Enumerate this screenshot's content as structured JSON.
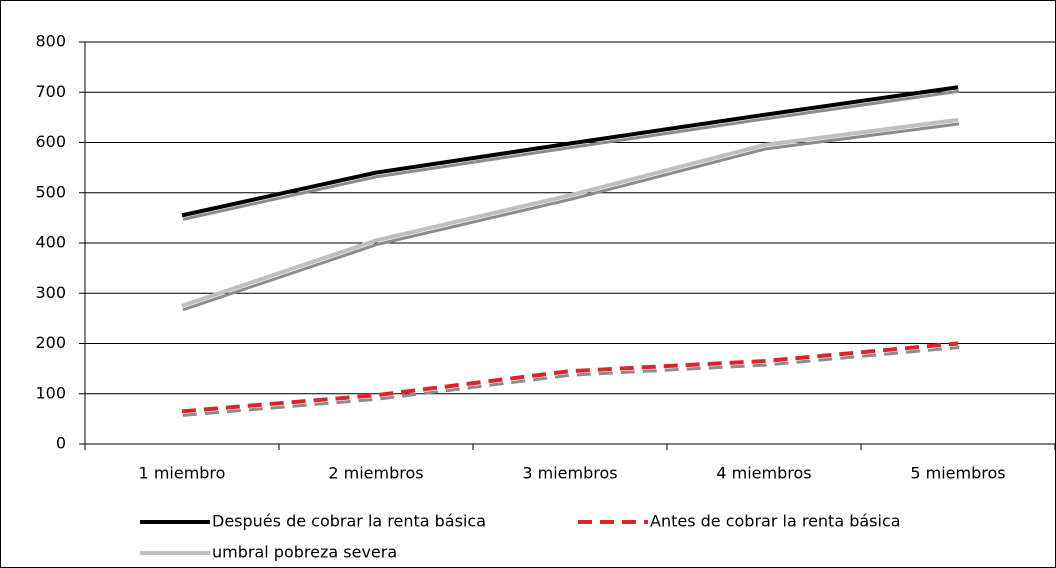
{
  "chart_data": {
    "type": "line",
    "categories": [
      "1 miembro",
      "2 miembros",
      "3 miembros",
      "4 miembros",
      "5 miembros"
    ],
    "series": [
      {
        "name": "Después de cobrar la renta básica",
        "color": "#000000",
        "dash": false,
        "values": [
          455,
          540,
          598,
          655,
          710
        ]
      },
      {
        "name": "Antes de cobrar la renta básica",
        "color": "#d9262b",
        "dash": true,
        "values": [
          65,
          97,
          145,
          165,
          200
        ]
      },
      {
        "name": "umbral pobreza severa",
        "color": "#bfbfbf",
        "dash": false,
        "values": [
          275,
          405,
          495,
          595,
          645
        ]
      }
    ],
    "ylim": [
      0,
      800
    ],
    "yticks": [
      0,
      100,
      200,
      300,
      400,
      500,
      600,
      700,
      800
    ],
    "grid": true,
    "legend": "bottom"
  }
}
